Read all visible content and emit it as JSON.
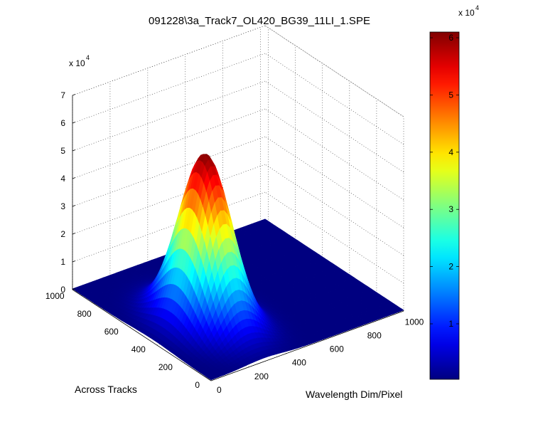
{
  "chart_data": {
    "type": "surface",
    "title": "091228\\3a_Track7_OL420_BG39_11LI_1.SPE",
    "xlabel": "Wavelength Dim/Pixel",
    "ylabel": "Across Tracks",
    "z_exponent_label": "x 10",
    "z_exponent": "4",
    "x_range": [
      0,
      1024
    ],
    "y_range": [
      0,
      1024
    ],
    "z_range": [
      0,
      70000
    ],
    "x_ticks": [
      0,
      200,
      400,
      600,
      800,
      1000
    ],
    "y_ticks": [
      0,
      200,
      400,
      600,
      800,
      1000
    ],
    "z_ticks": [
      0,
      1,
      2,
      3,
      4,
      5,
      6,
      7
    ],
    "grid": true,
    "colormap": "jet",
    "surface": {
      "shape": "gaussian",
      "peak_value": 61000,
      "baseline": 300,
      "peak_x": 280,
      "peak_y": 430,
      "width_x": 95,
      "width_y": 150
    },
    "colorbar": {
      "range": [
        300,
        61000
      ],
      "ticks": [
        1,
        2,
        3,
        4,
        5,
        6
      ],
      "exponent_label": "x 10",
      "exponent": "4",
      "placement": "right"
    }
  }
}
